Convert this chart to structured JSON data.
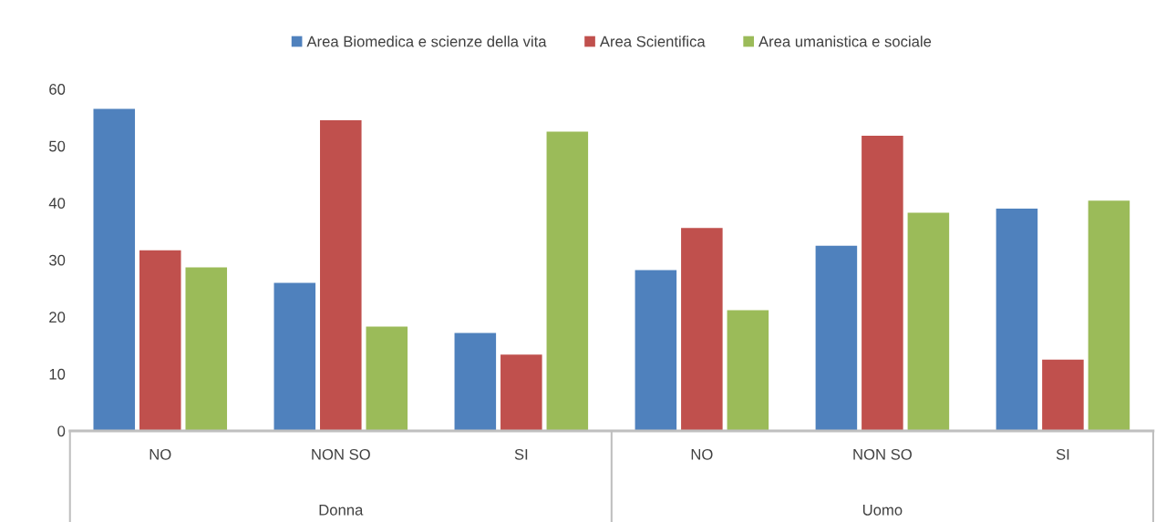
{
  "chart_data": {
    "type": "bar",
    "categories": [
      "NO",
      "NON SO",
      "SI",
      "NO",
      "NON SO",
      "SI"
    ],
    "series": [
      {
        "name": "Area Biomedica e scienze della vita",
        "color": "#4f81bd",
        "values": [
          56.5,
          26.0,
          17.2,
          28.2,
          32.5,
          39.0
        ]
      },
      {
        "name": "Area Scientifica",
        "color": "#c0504d",
        "values": [
          31.7,
          54.5,
          13.4,
          35.6,
          51.8,
          12.5
        ]
      },
      {
        "name": "Area umanistica e sociale",
        "color": "#9bbb59",
        "values": [
          28.7,
          18.3,
          52.5,
          21.2,
          38.3,
          40.4
        ]
      }
    ],
    "annotations": [
      "Donna",
      "Uomo"
    ],
    "ylim": [
      0,
      60
    ],
    "yticks": [
      0,
      10,
      20,
      30,
      40,
      50,
      60
    ],
    "grid": false,
    "legend": "top"
  }
}
